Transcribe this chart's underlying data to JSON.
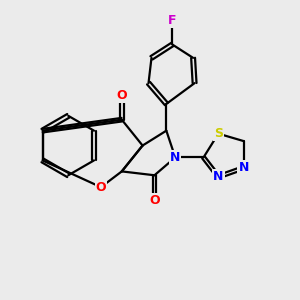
{
  "background_color": "#ebebeb",
  "figsize": [
    3.0,
    3.0
  ],
  "dpi": 100,
  "atom_colors": {
    "C": "#000000",
    "N": "#0000ff",
    "O": "#ff0000",
    "S": "#cccc00",
    "F": "#cc00cc"
  },
  "bond_color": "#000000",
  "bond_width": 1.6,
  "dbo": 0.055,
  "font_size_atom": 9
}
